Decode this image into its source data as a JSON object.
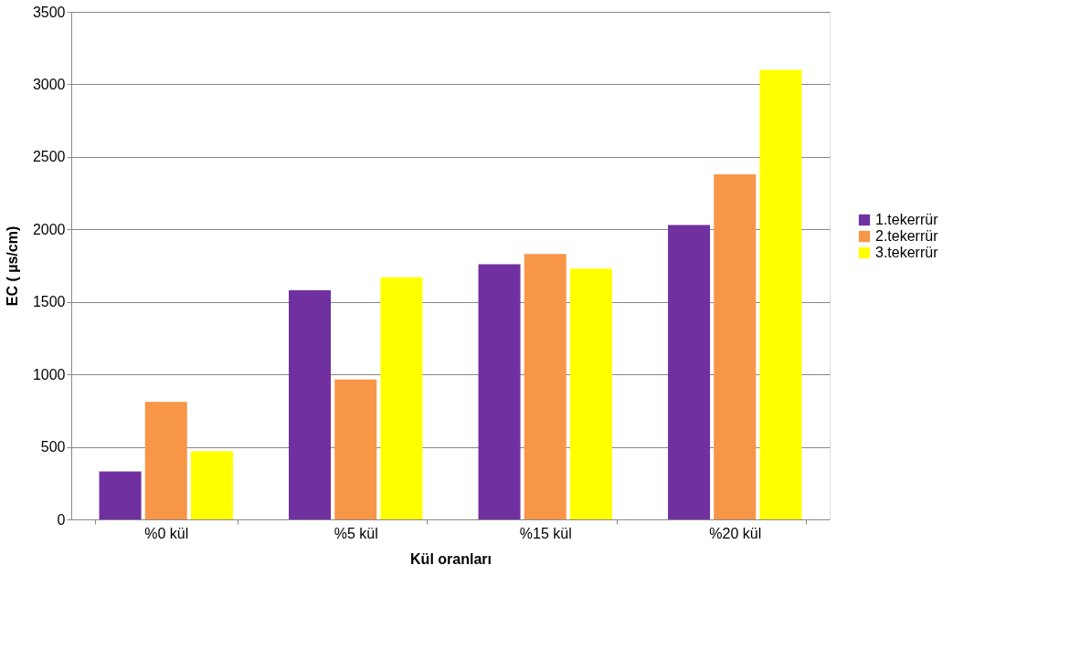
{
  "chart_data": {
    "type": "bar",
    "xlabel": "Kül oranları",
    "ylabel": "EC ( µs/cm)",
    "categories": [
      "%0 kül",
      "%5 kül",
      "%15 kül",
      "%20 kül"
    ],
    "series": [
      {
        "name": "1.tekerrür",
        "color": "#7030a0",
        "values": [
          330,
          1580,
          1760,
          2030
        ]
      },
      {
        "name": "2.tekerrür",
        "color": "#f79646",
        "values": [
          810,
          965,
          1830,
          2380
        ]
      },
      {
        "name": "3.tekerrür",
        "color": "#ffff00",
        "values": [
          470,
          1670,
          1730,
          3100
        ]
      }
    ],
    "ylim": [
      0,
      3500
    ],
    "yticks": [
      0,
      500,
      1000,
      1500,
      2000,
      2500,
      3000,
      3500
    ],
    "grid": "y",
    "legend": "right"
  }
}
